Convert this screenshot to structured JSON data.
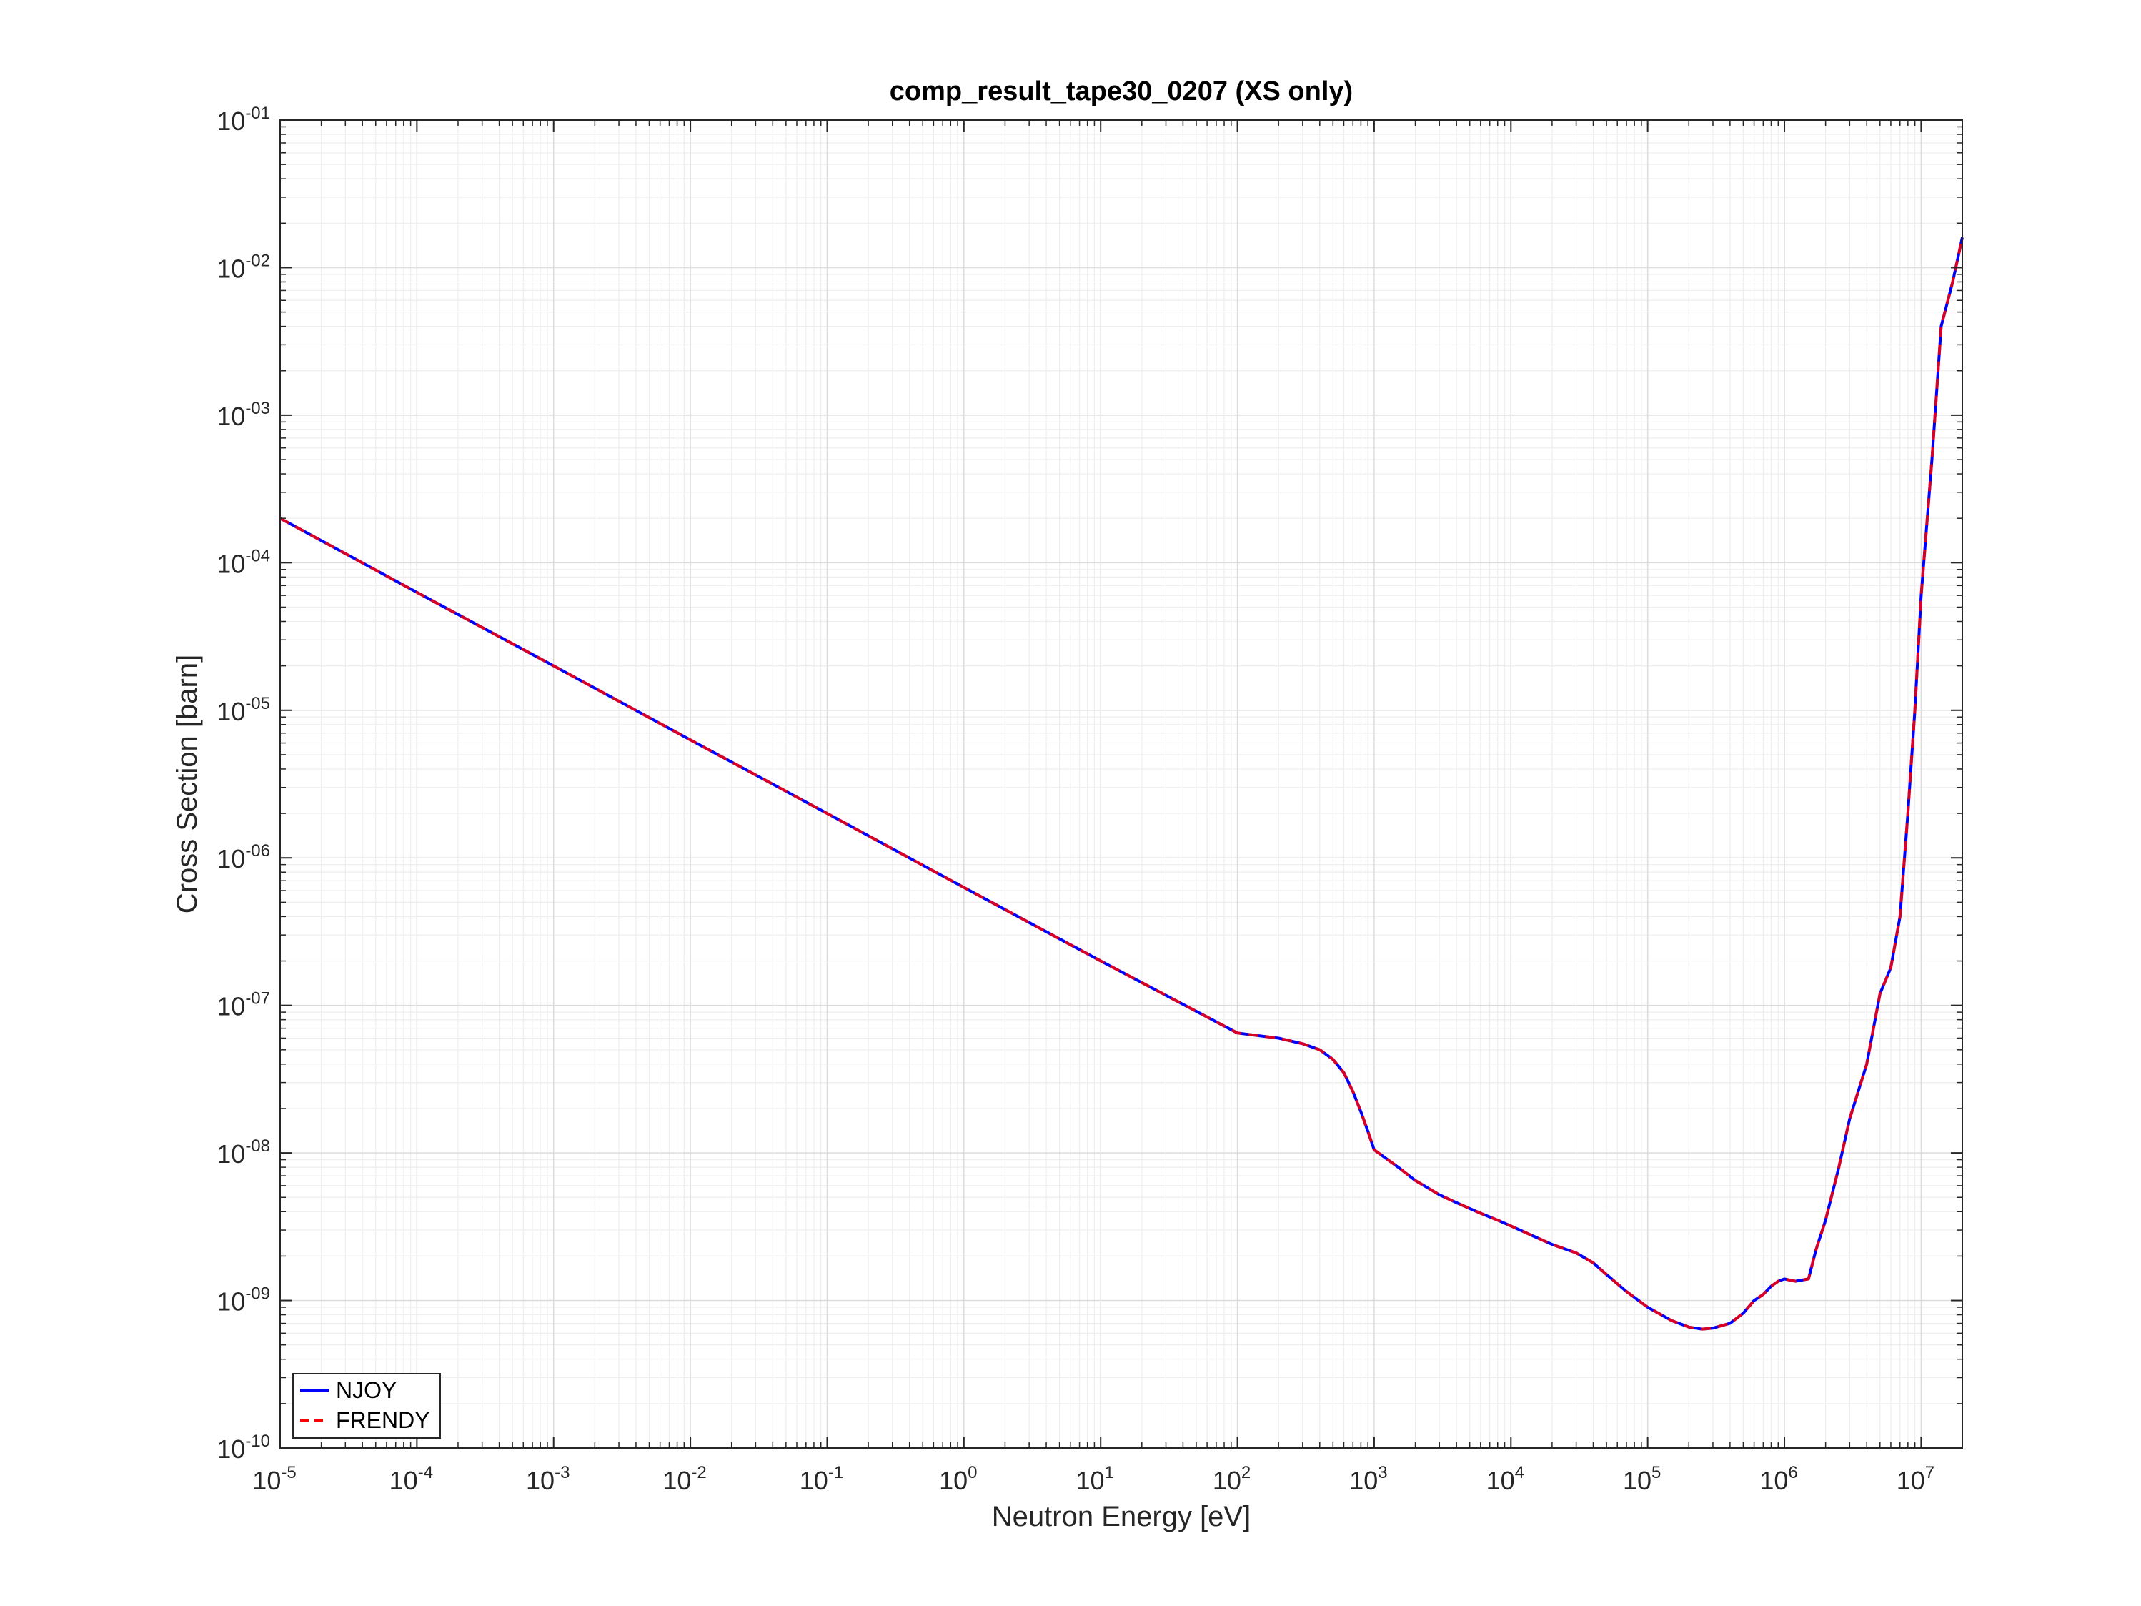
{
  "chart_data": {
    "type": "line",
    "title": "comp_result_tape30_0207 (XS only)",
    "xlabel": "Neutron Energy [eV]",
    "ylabel": "Cross Section [barn]",
    "xscale": "log",
    "yscale": "log",
    "xlim": [
      1e-05,
      20000000.0
    ],
    "ylim": [
      1e-10,
      0.1
    ],
    "grid": true,
    "minor_grid": true,
    "legend_position": "bottom-left",
    "x_ticks": [
      {
        "base": "10",
        "exp": "-5"
      },
      {
        "base": "10",
        "exp": "-4"
      },
      {
        "base": "10",
        "exp": "-3"
      },
      {
        "base": "10",
        "exp": "-2"
      },
      {
        "base": "10",
        "exp": "-1"
      },
      {
        "base": "10",
        "exp": "0"
      },
      {
        "base": "10",
        "exp": "1"
      },
      {
        "base": "10",
        "exp": "2"
      },
      {
        "base": "10",
        "exp": "3"
      },
      {
        "base": "10",
        "exp": "4"
      },
      {
        "base": "10",
        "exp": "5"
      },
      {
        "base": "10",
        "exp": "6"
      },
      {
        "base": "10",
        "exp": "7"
      }
    ],
    "y_ticks": [
      {
        "base": "10",
        "exp": "-10"
      },
      {
        "base": "10",
        "exp": "-09"
      },
      {
        "base": "10",
        "exp": "-08"
      },
      {
        "base": "10",
        "exp": "-07"
      },
      {
        "base": "10",
        "exp": "-06"
      },
      {
        "base": "10",
        "exp": "-05"
      },
      {
        "base": "10",
        "exp": "-04"
      },
      {
        "base": "10",
        "exp": "-03"
      },
      {
        "base": "10",
        "exp": "-02"
      },
      {
        "base": "10",
        "exp": "-01"
      }
    ],
    "series": [
      {
        "name": "NJOY",
        "color": "#0000ff",
        "style": "solid",
        "x": [
          1e-05,
          0.0001,
          0.001,
          0.01,
          0.1,
          1,
          10,
          100,
          200,
          300,
          400,
          500,
          600,
          700,
          800,
          900,
          1000,
          1500,
          2000,
          3000,
          4000,
          5000,
          6000,
          8000,
          10000,
          15000,
          20000,
          30000,
          40000,
          50000,
          70000,
          100000,
          150000,
          200000,
          250000,
          300000,
          400000,
          500000,
          600000,
          700000,
          800000,
          900000,
          1000000,
          1200000,
          1500000,
          1700000,
          2000000,
          2500000,
          3000000,
          4000000,
          5000000,
          6000000,
          7000000,
          8000000,
          9000000,
          10000000,
          12000000,
          14000000,
          17000000,
          20000000
        ],
        "y": [
          0.0002,
          6.3e-05,
          2e-05,
          6.3e-06,
          2e-06,
          6.3e-07,
          2e-07,
          6.5e-08,
          6e-08,
          5.5e-08,
          5e-08,
          4.3e-08,
          3.5e-08,
          2.6e-08,
          1.9e-08,
          1.4e-08,
          1.05e-08,
          8e-09,
          6.5e-09,
          5.2e-09,
          4.6e-09,
          4.2e-09,
          3.9e-09,
          3.5e-09,
          3.2e-09,
          2.7e-09,
          2.4e-09,
          2.1e-09,
          1.8e-09,
          1.5e-09,
          1.15e-09,
          9e-10,
          7.3e-10,
          6.6e-10,
          6.4e-10,
          6.5e-10,
          7e-10,
          8.2e-10,
          1e-09,
          1.1e-09,
          1.25e-09,
          1.35e-09,
          1.4e-09,
          1.35e-09,
          1.4e-09,
          2.2e-09,
          3.5e-09,
          8e-09,
          1.7e-08,
          4e-08,
          1.2e-07,
          1.8e-07,
          4e-07,
          2e-06,
          1e-05,
          6e-05,
          0.0005,
          0.004,
          0.008,
          0.016
        ]
      },
      {
        "name": "FRENDY",
        "color": "#ff0000",
        "style": "dashed",
        "x": [
          1e-05,
          0.0001,
          0.001,
          0.01,
          0.1,
          1,
          10,
          100,
          200,
          300,
          400,
          500,
          600,
          700,
          800,
          900,
          1000,
          1500,
          2000,
          3000,
          4000,
          5000,
          6000,
          8000,
          10000,
          15000,
          20000,
          30000,
          40000,
          50000,
          70000,
          100000,
          150000,
          200000,
          250000,
          300000,
          400000,
          500000,
          600000,
          700000,
          800000,
          900000,
          1000000,
          1200000,
          1500000,
          1700000,
          2000000,
          2500000,
          3000000,
          4000000,
          5000000,
          6000000,
          7000000,
          8000000,
          9000000,
          10000000,
          12000000,
          14000000,
          17000000,
          20000000
        ],
        "y": [
          0.0002,
          6.3e-05,
          2e-05,
          6.3e-06,
          2e-06,
          6.3e-07,
          2e-07,
          6.5e-08,
          6e-08,
          5.5e-08,
          5e-08,
          4.3e-08,
          3.5e-08,
          2.6e-08,
          1.9e-08,
          1.4e-08,
          1.05e-08,
          8e-09,
          6.5e-09,
          5.2e-09,
          4.6e-09,
          4.2e-09,
          3.9e-09,
          3.5e-09,
          3.2e-09,
          2.7e-09,
          2.4e-09,
          2.1e-09,
          1.8e-09,
          1.5e-09,
          1.15e-09,
          9e-10,
          7.3e-10,
          6.6e-10,
          6.4e-10,
          6.5e-10,
          7e-10,
          8.2e-10,
          1e-09,
          1.1e-09,
          1.25e-09,
          1.35e-09,
          1.4e-09,
          1.35e-09,
          1.4e-09,
          2.2e-09,
          3.5e-09,
          8e-09,
          1.7e-08,
          4e-08,
          1.2e-07,
          1.8e-07,
          4e-07,
          2e-06,
          1e-05,
          6e-05,
          0.0005,
          0.004,
          0.008,
          0.016
        ]
      }
    ]
  }
}
